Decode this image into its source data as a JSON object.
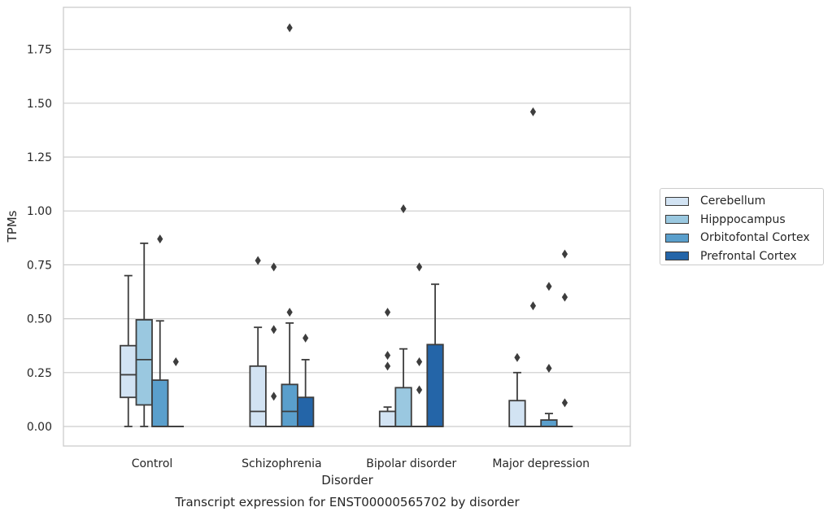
{
  "chart_data": {
    "type": "box",
    "title": "Transcript expression for ENST00000565702 by disorder",
    "xlabel": "Disorder",
    "ylabel": "TPMs",
    "ylim": [
      -0.09,
      1.95
    ],
    "yticks": [
      "0.00",
      "0.25",
      "0.50",
      "0.75",
      "1.00",
      "1.25",
      "1.50",
      "1.75"
    ],
    "grid": "horizontal",
    "legend_position": "right",
    "categories": [
      "Control",
      "Schizophrenia",
      "Bipolar disorder",
      "Major depression"
    ],
    "series": [
      {
        "name": "Cerebellum",
        "color": "#d2e3f3",
        "boxes": [
          {
            "whisker_low": 0.0,
            "q1": 0.135,
            "median": 0.24,
            "q3": 0.375,
            "whisker_high": 0.7,
            "outliers": []
          },
          {
            "whisker_low": 0.0,
            "q1": 0.0,
            "median": 0.07,
            "q3": 0.28,
            "whisker_high": 0.46,
            "outliers": [
              0.77
            ]
          },
          {
            "whisker_low": 0.0,
            "q1": 0.0,
            "median": 0.0,
            "q3": 0.07,
            "whisker_high": 0.09,
            "outliers": [
              0.28,
              0.33,
              0.53
            ]
          },
          {
            "whisker_low": 0.0,
            "q1": 0.0,
            "median": 0.0,
            "q3": 0.12,
            "whisker_high": 0.25,
            "outliers": [
              0.32
            ]
          }
        ]
      },
      {
        "name": "Hipppocampus",
        "color": "#9ac8e0",
        "boxes": [
          {
            "whisker_low": 0.0,
            "q1": 0.1,
            "median": 0.31,
            "q3": 0.495,
            "whisker_high": 0.85,
            "outliers": []
          },
          {
            "whisker_low": 0.0,
            "q1": 0.0,
            "median": 0.0,
            "q3": 0.0,
            "whisker_high": 0.0,
            "outliers": [
              0.14,
              0.45,
              0.74
            ]
          },
          {
            "whisker_low": 0.0,
            "q1": 0.0,
            "median": 0.0,
            "q3": 0.18,
            "whisker_high": 0.36,
            "outliers": [
              1.01
            ]
          },
          {
            "whisker_low": 0.0,
            "q1": 0.0,
            "median": 0.0,
            "q3": 0.0,
            "whisker_high": 0.0,
            "outliers": [
              0.56,
              1.46
            ]
          }
        ]
      },
      {
        "name": "Orbitofontal Cortex",
        "color": "#5a9fcc",
        "boxes": [
          {
            "whisker_low": 0.0,
            "q1": 0.0,
            "median": 0.0,
            "q3": 0.215,
            "whisker_high": 0.49,
            "outliers": [
              0.87
            ]
          },
          {
            "whisker_low": 0.0,
            "q1": 0.0,
            "median": 0.07,
            "q3": 0.195,
            "whisker_high": 0.48,
            "outliers": [
              0.53,
              1.85
            ]
          },
          {
            "whisker_low": 0.0,
            "q1": 0.0,
            "median": 0.0,
            "q3": 0.0,
            "whisker_high": 0.0,
            "outliers": [
              0.17,
              0.3,
              0.74
            ]
          },
          {
            "whisker_low": 0.0,
            "q1": 0.0,
            "median": 0.0,
            "q3": 0.03,
            "whisker_high": 0.06,
            "outliers": [
              0.27,
              0.65
            ]
          }
        ]
      },
      {
        "name": "Prefrontal Cortex",
        "color": "#2465a8",
        "boxes": [
          {
            "whisker_low": 0.0,
            "q1": 0.0,
            "median": 0.0,
            "q3": 0.0,
            "whisker_high": 0.0,
            "outliers": [
              0.3
            ]
          },
          {
            "whisker_low": 0.0,
            "q1": 0.0,
            "median": 0.0,
            "q3": 0.135,
            "whisker_high": 0.31,
            "outliers": [
              0.41
            ]
          },
          {
            "whisker_low": 0.0,
            "q1": 0.0,
            "median": 0.0,
            "q3": 0.38,
            "whisker_high": 0.66,
            "outliers": []
          },
          {
            "whisker_low": 0.0,
            "q1": 0.0,
            "median": 0.0,
            "q3": 0.0,
            "whisker_high": 0.0,
            "outliers": [
              0.11,
              0.6,
              0.8
            ]
          }
        ]
      }
    ]
  }
}
